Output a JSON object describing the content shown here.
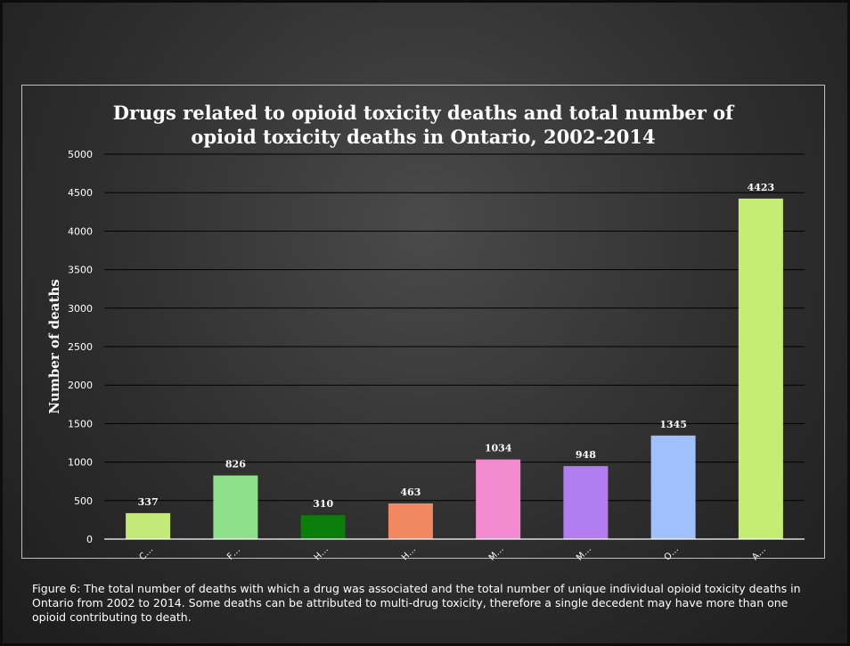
{
  "chart_data": {
    "type": "bar",
    "title": "Drugs related to opioid toxicity deaths and total number of\nopioid toxicity deaths in Ontario, 2002-2014",
    "xlabel": "",
    "ylabel": "Number of deaths",
    "ylim": [
      0,
      5000
    ],
    "yticks": [
      0,
      500,
      1000,
      1500,
      2000,
      2500,
      3000,
      3500,
      4000,
      4500,
      5000
    ],
    "grid": true,
    "legend": "none",
    "categories": [
      "C…",
      "F…",
      "H…",
      "H…",
      "M…",
      "M…",
      "O…",
      "A…"
    ],
    "values": [
      337,
      826,
      310,
      463,
      1034,
      948,
      1345,
      4423
    ],
    "colors": [
      "#c3ea78",
      "#8ee08a",
      "#0a7d0a",
      "#f28860",
      "#f28ad0",
      "#b27df0",
      "#9fbffd",
      "#c5ec73"
    ]
  },
  "caption": "Figure 6: The total number of deaths with which a drug was associated and the total number of unique individual opioid toxicity deaths in Ontario from 2002 to 2014. Some deaths can be attributed to multi-drug toxicity, therefore a single decedent may have more than one opioid contributing to death."
}
